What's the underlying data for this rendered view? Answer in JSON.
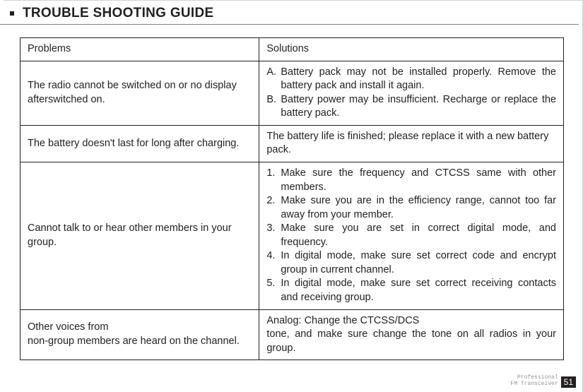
{
  "page": {
    "title": "TROUBLE SHOOTING GUIDE",
    "headerColumns": {
      "problems": "Problems",
      "solutions": "Solutions"
    },
    "rows": [
      {
        "problem": "The radio cannot be switched on or no display afterswitched on.",
        "solutions": [
          {
            "marker": "A.",
            "text": " Battery pack may not be installed properly. Remove the battery pack and install it again."
          },
          {
            "marker": "B.",
            "text": " Battery power may be insufficient. Recharge or replace the battery pack."
          }
        ]
      },
      {
        "problem": "The battery doesn't last for long after charging.",
        "solutionText": "The battery life is finished; please replace it with a new battery pack."
      },
      {
        "problem": "Cannot talk to or hear other members in your group.",
        "solutions": [
          {
            "marker": "1.",
            "text": "Make sure the frequency and CTCSS same with other members."
          },
          {
            "marker": "2.",
            "text": "Make sure you are in the efficiency range, cannot too far away from your member."
          },
          {
            "marker": "3.",
            "text": "Make sure you are set in correct digital mode, and frequency."
          },
          {
            "marker": "4.",
            "text": "In digital mode, make sure set correct code and encrypt group in current channel."
          },
          {
            "marker": "5.",
            "text": "In digital mode, make sure set correct receiving contacts and receiving group."
          }
        ]
      },
      {
        "problem": "Other voices from\nnon-group members are heard on the channel.",
        "solutionText": "Analog: Change the CTCSS/DCS\ntone, and make sure change the tone on all radios in your group."
      }
    ],
    "footer": {
      "line1": "Professional",
      "line2": "FM Transceiver",
      "pageNumber": "51"
    }
  },
  "styling": {
    "bodyW": 825,
    "bodyH": 555,
    "textColor": "#231f20",
    "bg": "#ffffff",
    "underlineColor": "#808285",
    "footerLabelColor": "#939598",
    "titleFontsize": 19,
    "tableFontsize": 14.5,
    "footerFontsize": 8,
    "pageNoFontsize": 12,
    "tableWidth": 770,
    "colProblemPct": 44,
    "colSolutionPct": 56
  }
}
